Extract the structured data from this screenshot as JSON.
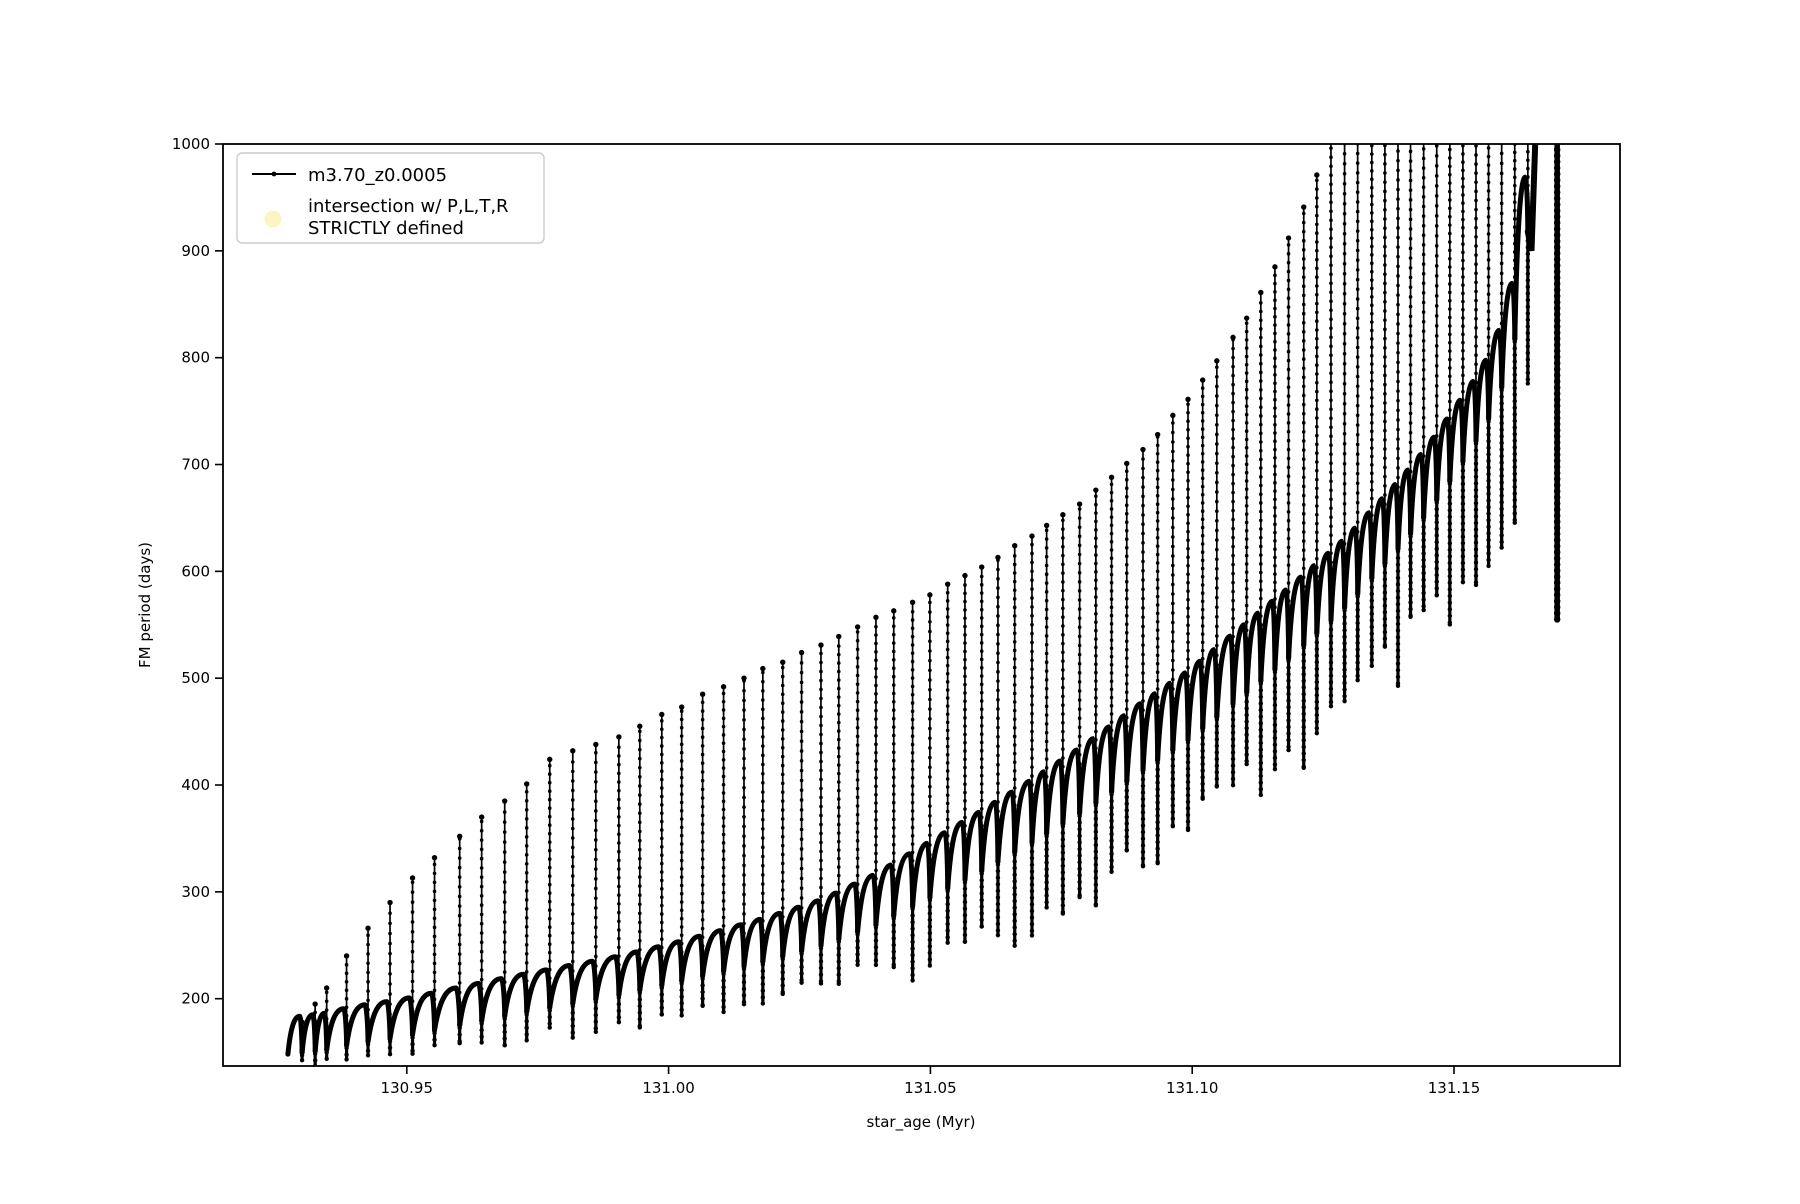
{
  "chart_data": {
    "type": "line",
    "title": "",
    "xlabel": "star_age (Myr)",
    "ylabel": "FM period (days)",
    "xlim": [
      130.9149,
      131.1817
    ],
    "ylim": [
      137,
      1000
    ],
    "grid": false,
    "xticks": {
      "values": [
        130.95,
        131.0,
        131.05,
        131.1,
        131.15
      ],
      "labels": [
        "130.95",
        "131.00",
        "131.05",
        "131.10",
        "131.15"
      ]
    },
    "yticks": {
      "values": [
        200,
        300,
        400,
        500,
        600,
        700,
        800,
        900,
        1000
      ],
      "labels": [
        "200",
        "300",
        "400",
        "500",
        "600",
        "700",
        "800",
        "900",
        "1000"
      ]
    },
    "legend": {
      "position": "upper left",
      "entries": [
        {
          "label": "m3.70_z0.0005",
          "type": "line-with-dot-marker",
          "color": "#000000"
        },
        {
          "label": "intersection w/ P,L,T,R\nSTRICTLY defined",
          "lines": [
            "intersection w/ P,L,T,R",
            "STRICTLY defined"
          ],
          "type": "round-marker",
          "color": "#faf6c3"
        }
      ]
    },
    "series_color": "#000000",
    "data_start": {
      "x": 130.9273,
      "value": 148
    },
    "baseline_dips": [
      [
        130.9273,
        148
      ],
      [
        130.9345,
        152
      ],
      [
        130.94,
        158
      ],
      [
        130.95,
        165
      ],
      [
        130.96,
        175
      ],
      [
        130.97,
        185
      ],
      [
        130.98,
        194
      ],
      [
        130.99,
        203
      ],
      [
        131.0,
        214
      ],
      [
        131.01,
        225
      ],
      [
        131.02,
        237
      ],
      [
        131.03,
        251
      ],
      [
        131.04,
        270
      ],
      [
        131.05,
        295
      ],
      [
        131.06,
        320
      ],
      [
        131.07,
        348
      ],
      [
        131.08,
        378
      ],
      [
        131.09,
        412
      ],
      [
        131.1,
        445
      ],
      [
        131.11,
        485
      ],
      [
        131.12,
        525
      ],
      [
        131.13,
        570
      ],
      [
        131.14,
        625
      ],
      [
        131.145,
        655
      ],
      [
        131.15,
        690
      ],
      [
        131.155,
        728
      ],
      [
        131.158,
        756
      ],
      [
        131.161,
        800
      ],
      [
        131.163,
        858
      ],
      [
        131.1645,
        940
      ],
      [
        131.1658,
        1010
      ]
    ],
    "arc_amplitude": [
      [
        130.9273,
        34
      ],
      [
        131.0,
        36
      ],
      [
        131.03,
        42
      ],
      [
        131.06,
        55
      ],
      [
        131.09,
        62
      ],
      [
        131.12,
        64
      ],
      [
        131.15,
        58
      ],
      [
        131.1658,
        50
      ]
    ],
    "tail_depth": [
      [
        130.9273,
        12
      ],
      [
        130.95,
        20
      ],
      [
        130.98,
        30
      ],
      [
        131.0,
        36
      ],
      [
        131.03,
        50
      ],
      [
        131.06,
        80
      ],
      [
        131.09,
        100
      ],
      [
        131.12,
        115
      ],
      [
        131.14,
        135
      ],
      [
        131.15,
        160
      ],
      [
        131.158,
        200
      ],
      [
        131.1658,
        230
      ]
    ],
    "spikes": [
      [
        130.93,
        178
      ],
      [
        130.9325,
        195
      ],
      [
        130.9347,
        210
      ],
      [
        130.9385,
        240
      ],
      [
        130.9426,
        266
      ],
      [
        130.9468,
        290
      ],
      [
        130.9511,
        313
      ],
      [
        130.9553,
        332
      ],
      [
        130.9601,
        352
      ],
      [
        130.9643,
        370
      ],
      [
        130.9687,
        385
      ],
      [
        130.9729,
        401
      ],
      [
        130.9773,
        424
      ],
      [
        130.9817,
        432
      ],
      [
        130.9861,
        438
      ],
      [
        130.9905,
        445
      ],
      [
        130.9945,
        455
      ],
      [
        130.9987,
        466
      ],
      [
        131.0025,
        473
      ],
      [
        131.0065,
        485
      ],
      [
        131.0105,
        492
      ],
      [
        131.0144,
        500
      ],
      [
        131.018,
        509
      ],
      [
        131.0218,
        515
      ],
      [
        131.0254,
        524
      ],
      [
        131.0291,
        531
      ],
      [
        131.0325,
        539
      ],
      [
        131.0361,
        548
      ],
      [
        131.0396,
        557
      ],
      [
        131.043,
        563
      ],
      [
        131.0466,
        571
      ],
      [
        131.0499,
        578
      ],
      [
        131.0533,
        588
      ],
      [
        131.0566,
        596
      ],
      [
        131.0598,
        604
      ],
      [
        131.0629,
        613
      ],
      [
        131.0661,
        624
      ],
      [
        131.0694,
        633
      ],
      [
        131.0722,
        643
      ],
      [
        131.0753,
        653
      ],
      [
        131.0785,
        663
      ],
      [
        131.0816,
        676
      ],
      [
        131.0846,
        688
      ],
      [
        131.0875,
        701
      ],
      [
        131.0906,
        714
      ],
      [
        131.0934,
        728
      ],
      [
        131.0963,
        746
      ],
      [
        131.0992,
        761
      ],
      [
        131.102,
        779
      ],
      [
        131.1047,
        797
      ],
      [
        131.1078,
        819
      ],
      [
        131.1104,
        837
      ],
      [
        131.1131,
        861
      ],
      [
        131.1158,
        885
      ],
      [
        131.1184,
        912
      ],
      [
        131.1213,
        941
      ],
      [
        131.1238,
        971
      ],
      [
        131.1265,
        1010
      ],
      [
        131.1291,
        1010
      ],
      [
        131.1316,
        1010
      ],
      [
        131.1343,
        1010
      ],
      [
        131.1368,
        1010
      ],
      [
        131.1393,
        1010
      ],
      [
        131.1417,
        1010
      ],
      [
        131.1442,
        1010
      ],
      [
        131.1467,
        1010
      ],
      [
        131.1492,
        1010
      ],
      [
        131.1517,
        1010
      ],
      [
        131.1542,
        1010
      ],
      [
        131.1566,
        1010
      ],
      [
        131.1591,
        1010
      ],
      [
        131.1616,
        1010
      ],
      [
        131.1641,
        1010
      ]
    ],
    "steep_exit": [
      [
        131.1648,
        900
      ],
      [
        131.1655,
        1000
      ],
      [
        131.1658,
        1012
      ]
    ],
    "end_line": {
      "x": 131.1697,
      "from": 555,
      "to": 1012
    }
  }
}
